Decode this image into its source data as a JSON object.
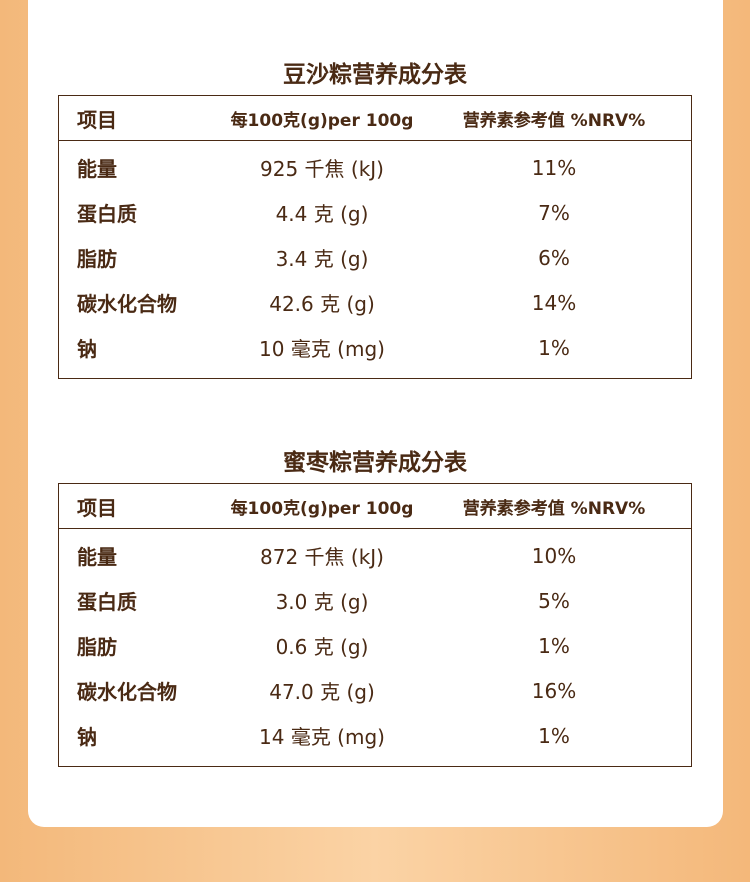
{
  "tables": [
    {
      "title": "豆沙粽营养成分表",
      "header": [
        "项目",
        "每100克(g)per 100g",
        "营养素参考值 %NRV%"
      ],
      "rows": [
        [
          "能量",
          "925 千焦 (kJ)",
          "11%"
        ],
        [
          "蛋白质",
          "4.4 克 (g)",
          "7%"
        ],
        [
          "脂肪",
          "3.4 克 (g)",
          "6%"
        ],
        [
          "碳水化合物",
          "42.6 克 (g)",
          "14%"
        ],
        [
          "钠",
          "10 毫克 (mg)",
          "1%"
        ]
      ]
    },
    {
      "title": "蜜枣粽营养成分表",
      "header": [
        "项目",
        "每100克(g)per 100g",
        "营养素参考值 %NRV%"
      ],
      "rows": [
        [
          "能量",
          "872 千焦 (kJ)",
          "10%"
        ],
        [
          "蛋白质",
          "3.0 克 (g)",
          "5%"
        ],
        [
          "脂肪",
          "0.6 克 (g)",
          "1%"
        ],
        [
          "碳水化合物",
          "47.0 克 (g)",
          "16%"
        ],
        [
          "钠",
          "14 毫克 (mg)",
          "1%"
        ]
      ]
    }
  ]
}
